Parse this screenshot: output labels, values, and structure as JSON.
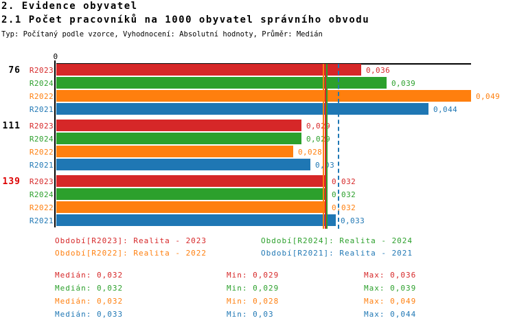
{
  "page": {
    "title1": "2. Evidence obyvatel",
    "title2": "2.1 Počet pracovníků na 1000 obyvatel správního obvodu",
    "subtitle": "Typ: Počítaný podle vzorce, Vyhodnocení: Absolutní hodnoty, Průměr: Medián"
  },
  "colors": {
    "R2023": "#d62728",
    "R2024": "#2ca02c",
    "R2022": "#ff7f0e",
    "R2021": "#1f77b4",
    "axis": "#000000",
    "highlight_group": "#dd0000",
    "group_label": "#000000"
  },
  "chart_data": {
    "type": "bar",
    "orientation": "horizontal",
    "title": "2.1 Počet pracovníků na 1000 obyvatel správního obvodu",
    "x_axis": {
      "zero_label": "0",
      "min": 0,
      "max": 0.049,
      "grid": false
    },
    "legend_position": "bottom",
    "series": [
      {
        "id": "R2023",
        "name": "R2023",
        "color": "#d62728",
        "legend": "Období[R2023]: Realita - 2023",
        "median": 0.032
      },
      {
        "id": "R2024",
        "name": "R2024",
        "color": "#2ca02c",
        "legend": "Období[R2024]: Realita - 2024",
        "median": 0.032
      },
      {
        "id": "R2022",
        "name": "R2022",
        "color": "#ff7f0e",
        "legend": "Období[R2022]: Realita - 2022",
        "median": 0.032
      },
      {
        "id": "R2021",
        "name": "R2021",
        "color": "#1f77b4",
        "legend": "Období[R2021]: Realita - 2021",
        "median": 0.033
      }
    ],
    "bar_order": [
      "R2023",
      "R2024",
      "R2022",
      "R2021"
    ],
    "groups": [
      {
        "label": "76",
        "highlight": false,
        "values": {
          "R2023": 0.036,
          "R2024": 0.039,
          "R2022": 0.049,
          "R2021": 0.044
        },
        "displays": {
          "R2023": "0,036",
          "R2024": "0,039",
          "R2022": "0,049",
          "R2021": "0,044"
        }
      },
      {
        "label": "111",
        "highlight": false,
        "values": {
          "R2023": 0.029,
          "R2024": 0.029,
          "R2022": 0.028,
          "R2021": 0.03
        },
        "displays": {
          "R2023": "0,029",
          "R2024": "0,029",
          "R2022": "0,028",
          "R2021": "0,03"
        }
      },
      {
        "label": "139",
        "highlight": true,
        "values": {
          "R2023": 0.032,
          "R2024": 0.032,
          "R2022": 0.032,
          "R2021": 0.033
        },
        "displays": {
          "R2023": "0,032",
          "R2024": "0,032",
          "R2022": "0,032",
          "R2021": "0,033"
        }
      }
    ]
  },
  "stats": {
    "rows": [
      {
        "series": "R2023",
        "median": "Medián: 0,032",
        "min": "Min: 0,029",
        "max": "Max: 0,036"
      },
      {
        "series": "R2024",
        "median": "Medián: 0,032",
        "min": "Min: 0,029",
        "max": "Max: 0,039"
      },
      {
        "series": "R2022",
        "median": "Medián: 0,032",
        "min": "Min: 0,028",
        "max": "Max: 0,049"
      },
      {
        "series": "R2021",
        "median": "Medián: 0,033",
        "min": "Min: 0,03",
        "max": "Max: 0,044"
      }
    ]
  }
}
